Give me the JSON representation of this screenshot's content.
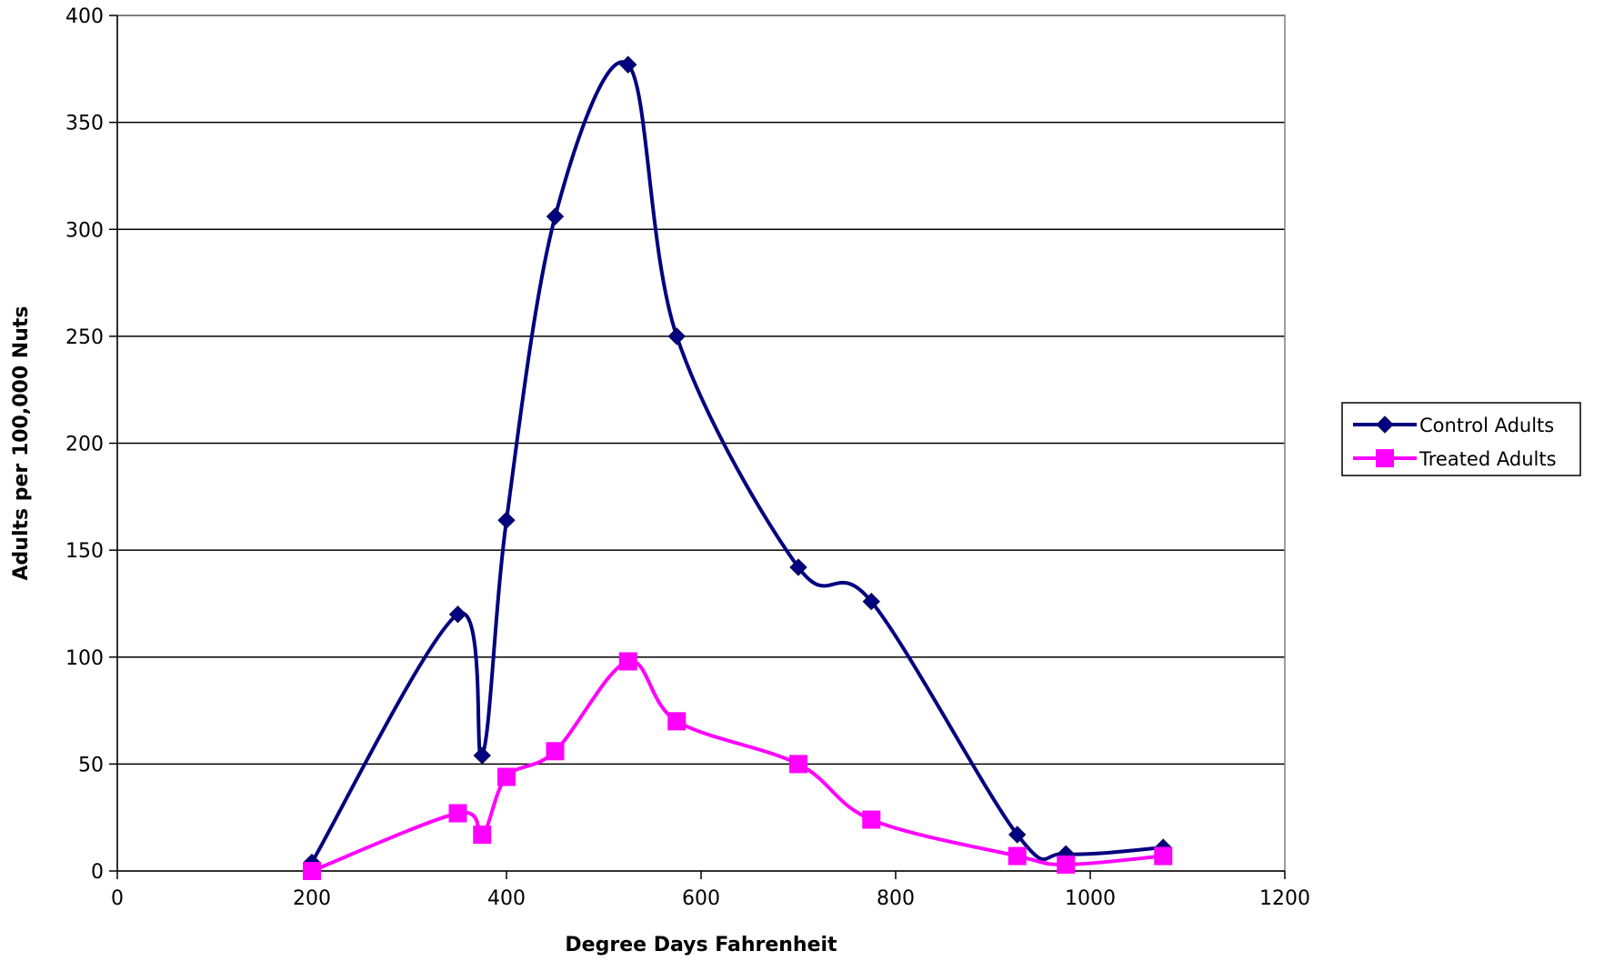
{
  "chart_data": {
    "type": "line",
    "xlabel": "Degree Days Fahrenheit",
    "ylabel": "Adults per 100,000 Nuts",
    "xlim": [
      0,
      1200
    ],
    "ylim": [
      0,
      400
    ],
    "x_ticks": [
      0,
      200,
      400,
      600,
      800,
      1000,
      1200
    ],
    "y_ticks": [
      0,
      50,
      100,
      150,
      200,
      250,
      300,
      350,
      400
    ],
    "grid": "horizontal",
    "smooth": true,
    "legend_position": "right",
    "series": [
      {
        "name": "Control Adults",
        "color": "#000080",
        "marker": "diamond",
        "x": [
          200,
          350,
          375,
          400,
          450,
          525,
          575,
          700,
          775,
          925,
          975,
          1075
        ],
        "y": [
          4,
          120,
          54,
          164,
          306,
          377,
          250,
          142,
          126,
          17,
          8,
          11
        ]
      },
      {
        "name": "Treated Adults",
        "color": "#FF00FF",
        "marker": "square",
        "x": [
          200,
          350,
          375,
          400,
          450,
          525,
          575,
          700,
          775,
          925,
          975,
          1075
        ],
        "y": [
          0,
          27,
          17,
          44,
          56,
          98,
          70,
          50,
          24,
          7,
          3,
          7
        ]
      }
    ]
  }
}
